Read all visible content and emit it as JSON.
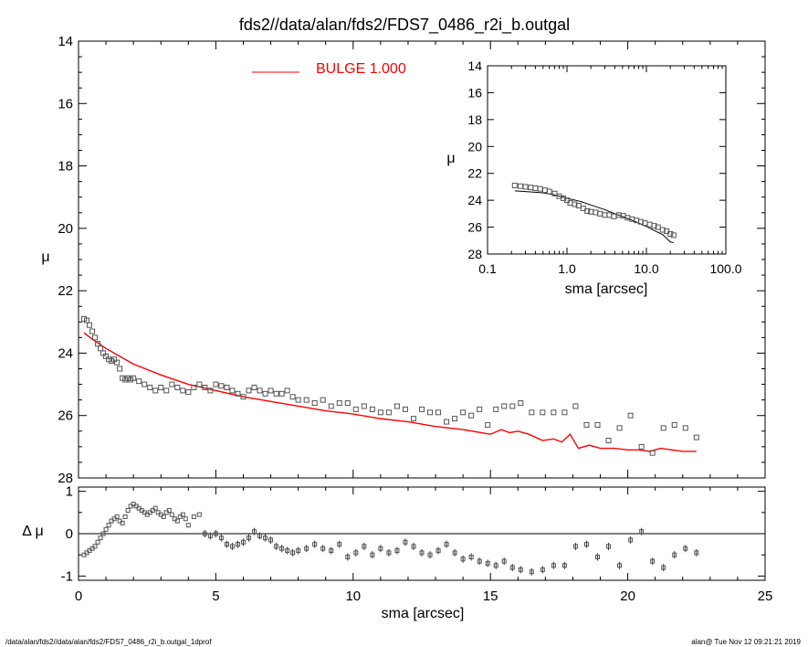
{
  "title": "fds2//data/alan/fds2/FDS7_0486_r2i_b.outgal",
  "footer_left": "/data/alan/fds2//data/alan/fds2/FDS7_0486_r2i_b.outgal_1dprof",
  "footer_right": "alan@  Tue Nov 12 09:21:21 2019",
  "legend": {
    "label": "BULGE  1.000",
    "color": "#ff0000"
  },
  "colors": {
    "model": "#ff0000",
    "data": "#555555",
    "axis": "#000000"
  },
  "chart_data": [
    {
      "type": "scatter",
      "panel": "main",
      "xlabel": "",
      "ylabel": "μ",
      "xlim": [
        0,
        25
      ],
      "ylim": [
        28,
        14
      ],
      "xticks": [
        0,
        5,
        10,
        15,
        20,
        25
      ],
      "yticks": [
        14,
        16,
        18,
        20,
        22,
        24,
        26,
        28
      ],
      "series": [
        {
          "kind": "data",
          "x": [
            0.2,
            0.3,
            0.4,
            0.5,
            0.6,
            0.7,
            0.8,
            0.9,
            1.0,
            1.1,
            1.2,
            1.3,
            1.4,
            1.5,
            1.6,
            1.7,
            1.8,
            1.9,
            2.0,
            2.2,
            2.4,
            2.6,
            2.8,
            3.0,
            3.2,
            3.4,
            3.6,
            3.8,
            4.0,
            4.2,
            4.4,
            4.6,
            4.8,
            5.0,
            5.2,
            5.4,
            5.6,
            5.8,
            6.0,
            6.2,
            6.4,
            6.6,
            6.8,
            7.0,
            7.2,
            7.4,
            7.6,
            7.8,
            8.0,
            8.3,
            8.6,
            8.9,
            9.2,
            9.5,
            9.8,
            10.1,
            10.4,
            10.7,
            11.0,
            11.3,
            11.6,
            11.9,
            12.2,
            12.5,
            12.8,
            13.1,
            13.4,
            13.7,
            14.0,
            14.3,
            14.6,
            14.9,
            15.2,
            15.5,
            15.8,
            16.1,
            16.5,
            16.9,
            17.3,
            17.7,
            18.1,
            18.5,
            18.9,
            19.3,
            19.7,
            20.1,
            20.5,
            20.9,
            21.3,
            21.7,
            22.1,
            22.5
          ],
          "y": [
            22.9,
            22.95,
            23.1,
            23.3,
            23.5,
            23.7,
            23.85,
            24.0,
            24.1,
            24.2,
            24.25,
            24.2,
            24.3,
            24.5,
            24.8,
            24.85,
            24.8,
            24.85,
            24.8,
            24.9,
            25.0,
            25.1,
            25.2,
            25.1,
            25.2,
            25.0,
            25.1,
            25.2,
            25.25,
            25.1,
            25.0,
            25.1,
            25.2,
            25.0,
            25.05,
            25.1,
            25.2,
            25.3,
            25.4,
            25.2,
            25.1,
            25.2,
            25.3,
            25.2,
            25.3,
            25.3,
            25.2,
            25.4,
            25.5,
            25.5,
            25.6,
            25.5,
            25.7,
            25.6,
            25.6,
            25.8,
            25.7,
            25.8,
            25.9,
            25.9,
            25.7,
            25.8,
            26.1,
            25.8,
            25.9,
            25.9,
            26.2,
            26.1,
            25.9,
            26.0,
            25.8,
            26.3,
            25.8,
            25.7,
            25.7,
            25.6,
            25.9,
            25.9,
            25.9,
            25.9,
            25.7,
            26.3,
            26.3,
            26.8,
            26.4,
            26.0,
            27.0,
            27.2,
            26.4,
            26.3,
            26.4,
            26.7
          ]
        },
        {
          "kind": "model",
          "name": "BULGE  1.000",
          "x": [
            0.2,
            0.5,
            1.0,
            1.5,
            2.0,
            3.0,
            4.0,
            5.0,
            6.0,
            7.0,
            8.0,
            9.0,
            10.0,
            11.0,
            12.0,
            13.0,
            14.0,
            15.0,
            15.4,
            15.7,
            16.0,
            16.4,
            16.9,
            17.3,
            17.6,
            17.9,
            18.2,
            18.6,
            19.0,
            19.5,
            20.0,
            20.4,
            20.8,
            21.2,
            21.6,
            22.0,
            22.5
          ],
          "y": [
            23.35,
            23.55,
            23.85,
            24.1,
            24.35,
            24.7,
            25.0,
            25.2,
            25.4,
            25.55,
            25.7,
            25.85,
            25.95,
            26.1,
            26.2,
            26.35,
            26.45,
            26.6,
            26.45,
            26.55,
            26.5,
            26.6,
            26.8,
            26.75,
            26.85,
            26.6,
            27.05,
            26.95,
            27.05,
            27.05,
            27.1,
            27.1,
            27.15,
            27.05,
            27.1,
            27.15,
            27.15
          ]
        }
      ]
    },
    {
      "type": "scatter",
      "panel": "residual",
      "xlabel": "sma [arcsec]",
      "ylabel": "Δ μ",
      "xlim": [
        0,
        25
      ],
      "ylim": [
        -1.1,
        1.1
      ],
      "xticks": [
        0,
        5,
        10,
        15,
        20,
        25
      ],
      "yticks": [
        -1,
        0,
        1
      ],
      "series": [
        {
          "kind": "residual",
          "x": [
            0.2,
            0.3,
            0.4,
            0.5,
            0.6,
            0.7,
            0.8,
            0.9,
            1.0,
            1.1,
            1.2,
            1.3,
            1.4,
            1.5,
            1.6,
            1.7,
            1.8,
            1.9,
            2.0,
            2.1,
            2.2,
            2.3,
            2.4,
            2.5,
            2.6,
            2.7,
            2.8,
            2.9,
            3.0,
            3.1,
            3.2,
            3.3,
            3.4,
            3.5,
            3.6,
            3.7,
            3.8,
            3.9,
            4.0,
            4.2,
            4.4,
            4.6,
            4.8,
            5.0,
            5.2,
            5.4,
            5.6,
            5.8,
            6.0,
            6.2,
            6.4,
            6.6,
            6.8,
            7.0,
            7.2,
            7.4,
            7.6,
            7.8,
            8.0,
            8.3,
            8.6,
            8.9,
            9.2,
            9.5,
            9.8,
            10.1,
            10.4,
            10.7,
            11.0,
            11.3,
            11.6,
            11.9,
            12.2,
            12.5,
            12.8,
            13.1,
            13.4,
            13.7,
            14.0,
            14.3,
            14.6,
            14.9,
            15.2,
            15.5,
            15.8,
            16.1,
            16.5,
            16.9,
            17.3,
            17.7,
            18.1,
            18.5,
            18.9,
            19.3,
            19.7,
            20.1,
            20.5,
            20.9,
            21.3,
            21.7,
            22.1,
            22.5
          ],
          "y": [
            -0.5,
            -0.45,
            -0.4,
            -0.35,
            -0.3,
            -0.2,
            -0.1,
            0.0,
            0.1,
            0.2,
            0.3,
            0.35,
            0.4,
            0.3,
            0.25,
            0.4,
            0.55,
            0.65,
            0.7,
            0.65,
            0.6,
            0.55,
            0.5,
            0.45,
            0.5,
            0.55,
            0.6,
            0.5,
            0.45,
            0.4,
            0.5,
            0.55,
            0.45,
            0.35,
            0.3,
            0.4,
            0.45,
            0.35,
            0.2,
            0.4,
            0.45,
            0.0,
            -0.05,
            0.0,
            -0.1,
            -0.25,
            -0.3,
            -0.25,
            -0.2,
            -0.1,
            0.05,
            -0.05,
            -0.1,
            -0.15,
            -0.3,
            -0.35,
            -0.4,
            -0.45,
            -0.4,
            -0.35,
            -0.25,
            -0.35,
            -0.4,
            -0.25,
            -0.55,
            -0.45,
            -0.3,
            -0.5,
            -0.35,
            -0.45,
            -0.4,
            -0.2,
            -0.3,
            -0.45,
            -0.5,
            -0.4,
            -0.25,
            -0.45,
            -0.6,
            -0.55,
            -0.65,
            -0.7,
            -0.75,
            -0.65,
            -0.8,
            -0.85,
            -0.9,
            -0.85,
            -0.75,
            -0.75,
            -0.3,
            -0.25,
            -0.55,
            -0.3,
            -0.75,
            -0.15,
            0.05,
            -0.65,
            -0.8,
            -0.5,
            -0.35,
            -0.45
          ]
        }
      ]
    },
    {
      "type": "scatter",
      "panel": "inset",
      "xlabel": "sma [arcsec]",
      "ylabel": "μ",
      "xscale": "log",
      "xlim": [
        0.1,
        100.0
      ],
      "ylim": [
        28,
        14
      ],
      "xticks": [
        0.1,
        1.0,
        10.0,
        100.0
      ],
      "xtick_labels": [
        "0.1",
        "1.0",
        "10.0",
        "100.0"
      ],
      "yticks": [
        14,
        16,
        18,
        20,
        22,
        24,
        26,
        28
      ],
      "series": [
        {
          "kind": "data",
          "x": [
            0.22,
            0.26,
            0.3,
            0.35,
            0.4,
            0.46,
            0.53,
            0.6,
            0.7,
            0.8,
            0.9,
            1.0,
            1.1,
            1.25,
            1.4,
            1.6,
            1.8,
            2.0,
            2.3,
            2.6,
            3.0,
            3.4,
            3.9,
            4.5,
            5.1,
            5.8,
            6.6,
            7.5,
            8.5,
            9.6,
            11.0,
            12.5,
            14.0,
            16.0,
            18.0,
            20.0,
            22.0
          ],
          "y": [
            22.9,
            22.95,
            23.0,
            23.05,
            23.1,
            23.15,
            23.25,
            23.35,
            23.5,
            23.7,
            23.85,
            24.0,
            24.2,
            24.3,
            24.4,
            24.6,
            24.8,
            24.85,
            24.9,
            25.0,
            25.1,
            25.1,
            25.2,
            25.1,
            25.15,
            25.3,
            25.4,
            25.5,
            25.6,
            25.7,
            25.8,
            25.9,
            26.0,
            26.2,
            26.3,
            26.5,
            26.6
          ]
        },
        {
          "kind": "model",
          "x": [
            0.22,
            0.3,
            0.4,
            0.5,
            0.7,
            1.0,
            1.5,
            2.0,
            3.0,
            4.0,
            5.0,
            7.0,
            10.0,
            13.0,
            16.0,
            20.0,
            22.0
          ],
          "y": [
            23.3,
            23.35,
            23.4,
            23.45,
            23.6,
            23.85,
            24.1,
            24.35,
            24.7,
            25.0,
            25.2,
            25.55,
            25.95,
            26.3,
            26.55,
            27.1,
            27.15
          ]
        }
      ]
    }
  ]
}
